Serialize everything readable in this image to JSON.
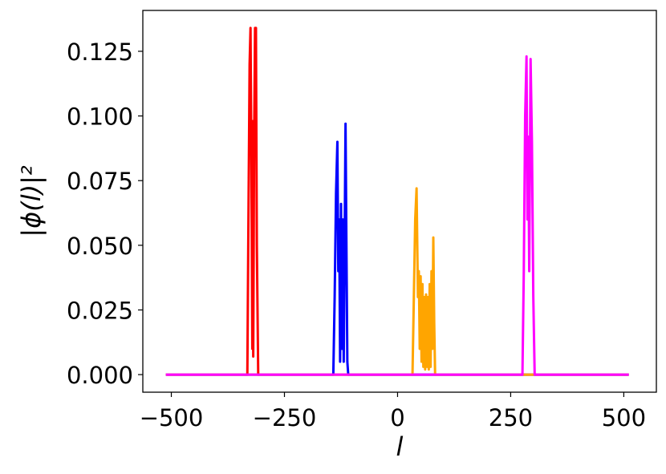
{
  "chart_data": {
    "type": "line",
    "xlabel": "l",
    "ylabel": "|ϕ(l)|²",
    "xlim": [
      -563,
      572
    ],
    "ylim": [
      -0.0068,
      0.1408
    ],
    "xticks": [
      {
        "value": -500,
        "label": "−500"
      },
      {
        "value": -250,
        "label": "−250"
      },
      0,
      250,
      500
    ],
    "yticks": [
      {
        "value": 0,
        "label": "0.000"
      },
      {
        "value": 0.025,
        "label": "0.025"
      },
      {
        "value": 0.05,
        "label": "0.050"
      },
      {
        "value": 0.075,
        "label": "0.075"
      },
      {
        "value": 0.1,
        "label": "0.100"
      },
      {
        "value": 0.125,
        "label": "0.125"
      }
    ],
    "grid": false,
    "series": [
      {
        "color": "#ff0000",
        "x": [
          -512,
          -332,
          -330,
          -327,
          -325,
          -323,
          -321,
          -320,
          -319,
          -317,
          -315,
          -313,
          -311,
          -308,
          511
        ],
        "values": [
          0,
          0,
          0.05,
          0.12,
          0.134,
          0.08,
          0.01,
          0.098,
          0.007,
          0.09,
          0.134,
          0.134,
          0.05,
          0,
          0
        ]
      },
      {
        "color": "#0000ff",
        "x": [
          -512,
          -142,
          -139,
          -136,
          -133,
          -131,
          -129,
          -127,
          -125,
          -123,
          -121,
          -119,
          -117,
          -115,
          -113,
          -111,
          -109,
          511
        ],
        "values": [
          0,
          0,
          0.03,
          0.07,
          0.09,
          0.04,
          0.06,
          0.005,
          0.066,
          0.01,
          0.06,
          0.005,
          0.05,
          0.097,
          0.05,
          0.005,
          0,
          0
        ]
      },
      {
        "color": "#ffa500",
        "x": [
          -512,
          33,
          36,
          39,
          42,
          45,
          47,
          49,
          51,
          53,
          55,
          57,
          59,
          61,
          63,
          65,
          67,
          69,
          71,
          73,
          75,
          77,
          79,
          81,
          83,
          511
        ],
        "values": [
          0,
          0,
          0.03,
          0.06,
          0.072,
          0.03,
          0.04,
          0.01,
          0.038,
          0.005,
          0.035,
          0.003,
          0.03,
          0.002,
          0.031,
          0.003,
          0.03,
          0.002,
          0.035,
          0.003,
          0.04,
          0.01,
          0.053,
          0.02,
          0,
          0
        ]
      },
      {
        "color": "#ff00ff",
        "x": [
          -512,
          276,
          279,
          282,
          285,
          287,
          289,
          291,
          294,
          297,
          300,
          303,
          511
        ],
        "values": [
          0,
          0,
          0.04,
          0.1,
          0.123,
          0.06,
          0.092,
          0.04,
          0.122,
          0.09,
          0.03,
          0,
          0
        ]
      }
    ]
  }
}
